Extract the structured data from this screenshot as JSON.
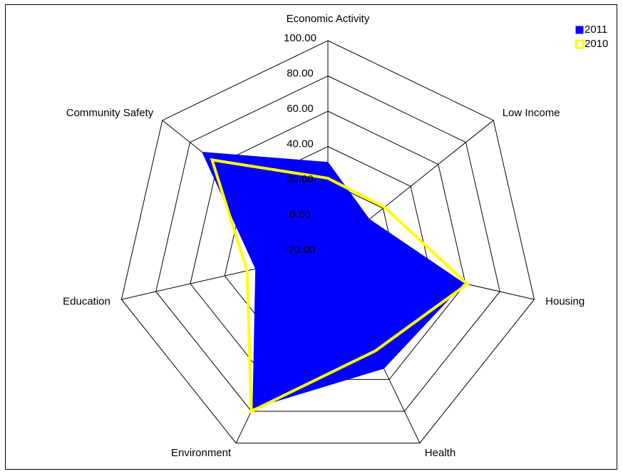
{
  "chart_data": {
    "type": "radar",
    "categories": [
      "Economic Activity",
      "Low Income",
      "Housing",
      "Health",
      "Environment",
      "Education",
      "Community Safety"
    ],
    "series": [
      {
        "name": "2011",
        "color": "#0000ff",
        "fill": true,
        "values": [
          31,
          10,
          59,
          53,
          78,
          22,
          71
        ]
      },
      {
        "name": "2010",
        "color": "#ffff00",
        "fill": false,
        "values": [
          22,
          21,
          61,
          42,
          80,
          27,
          64
        ]
      }
    ],
    "ylim": [
      -20,
      100
    ],
    "yticks": [
      {
        "value": -20,
        "label": "-20.00"
      },
      {
        "value": 0,
        "label": "0.00"
      },
      {
        "value": 20,
        "label": "20.00"
      },
      {
        "value": 40,
        "label": "40.00"
      },
      {
        "value": 60,
        "label": "60.00"
      },
      {
        "value": 80,
        "label": "80.00"
      },
      {
        "value": 100,
        "label": "100.00"
      }
    ],
    "legend": "top-right"
  }
}
